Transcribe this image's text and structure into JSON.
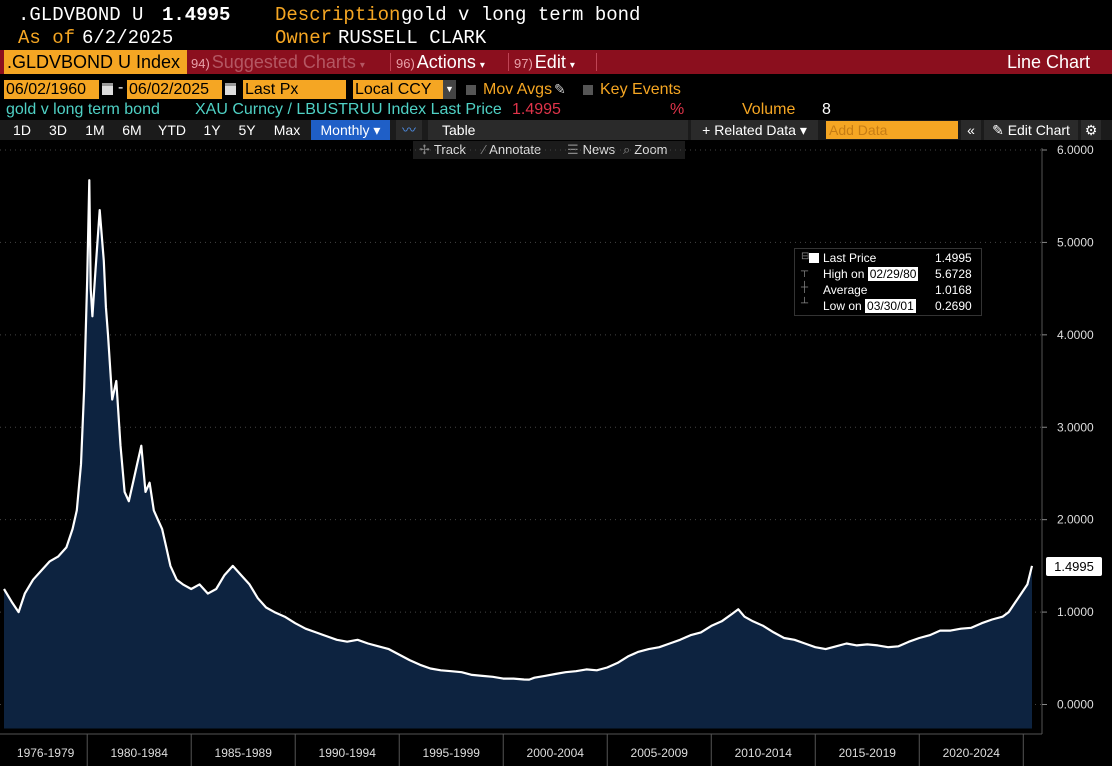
{
  "header": {
    "ticker": ".GLDVBOND U",
    "price": "1.4995",
    "as_of_label": "As of",
    "as_of_value": "6/2/2025",
    "description_label": "Description",
    "description_value": "gold v long term bond",
    "owner_label": "Owner",
    "owner_value": "RUSSELL CLARK"
  },
  "menubar": {
    "index_label": ".GLDVBOND U Index",
    "suggested_num": "94)",
    "suggested_label": "Suggested Charts",
    "actions_num": "96)",
    "actions_label": "Actions",
    "edit_num": "97)",
    "edit_label": "Edit",
    "view_title": "Line Chart"
  },
  "controls": {
    "start_date": "06/02/1960",
    "end_date": "06/02/2025",
    "field": "Last Px",
    "currency": "Local CCY",
    "mov_avgs": "Mov Avgs",
    "key_events": "Key Events"
  },
  "legend_row": {
    "series_name": "gold v long term bond",
    "formula": "XAU Curncy / LBUSTRUU Index Last Price",
    "last_value": "1.4995",
    "pct": "%",
    "volume_label": "Volume",
    "volume_value": "8"
  },
  "toolbar": {
    "ranges": [
      "1D",
      "3D",
      "1M",
      "6M",
      "YTD",
      "1Y",
      "5Y",
      "Max"
    ],
    "frequency": "Monthly",
    "table": "Table",
    "related_data": "Related Data",
    "add_data_placeholder": "Add Data",
    "edit_chart": "Edit Chart"
  },
  "subtoolbar": {
    "track": "Track",
    "annotate": "Annotate",
    "news": "News",
    "zoom": "Zoom"
  },
  "infobox": {
    "last_price_label": "Last Price",
    "last_price_value": "1.4995",
    "high_label": "High on",
    "high_date": "02/29/80",
    "high_value": "5.6728",
    "average_label": "Average",
    "average_value": "1.0168",
    "low_label": "Low on",
    "low_date": "03/30/01",
    "low_value": "0.2690"
  },
  "last_badge": "1.4995",
  "colors": {
    "background": "#000000",
    "line": "#ffffff",
    "fill": "#0d2340",
    "accent_orange": "#f5a623",
    "menubar_red": "#8b0f1e",
    "legend_cyan": "#4fd1c5"
  },
  "chart_data": {
    "type": "area",
    "title": "",
    "xlabel": "",
    "ylabel": "",
    "ylim": [
      0,
      6
    ],
    "y_ticks": [
      "0.0000",
      "1.0000",
      "2.0000",
      "3.0000",
      "4.0000",
      "5.0000",
      "6.0000"
    ],
    "x_ticks": [
      "1976-1979",
      "1980-1984",
      "1985-1989",
      "1990-1994",
      "1995-1999",
      "2000-2004",
      "2005-2009",
      "2010-2014",
      "2015-2019",
      "2020-2024"
    ],
    "xlim": [
      1976.0,
      2025.9
    ],
    "grid": "horizontal-dotted",
    "series": [
      {
        "name": "gold v long term bond",
        "x": [
          1976.0,
          1976.4,
          1976.7,
          1977.0,
          1977.4,
          1977.8,
          1978.2,
          1978.6,
          1979.0,
          1979.3,
          1979.5,
          1979.7,
          1979.85,
          1980.0,
          1980.1,
          1980.17,
          1980.25,
          1980.4,
          1980.6,
          1980.8,
          1980.9,
          1981.0,
          1981.2,
          1981.4,
          1981.6,
          1981.8,
          1982.0,
          1982.2,
          1982.4,
          1982.6,
          1982.8,
          1983.0,
          1983.2,
          1983.4,
          1983.6,
          1983.8,
          1984.0,
          1984.3,
          1984.6,
          1985.0,
          1985.4,
          1985.8,
          1986.2,
          1986.6,
          1987.0,
          1987.4,
          1987.8,
          1988.2,
          1988.6,
          1989.0,
          1989.5,
          1990.0,
          1990.5,
          1991.0,
          1991.5,
          1992.0,
          1992.5,
          1993.0,
          1993.5,
          1994.0,
          1994.5,
          1995.0,
          1995.5,
          1996.0,
          1996.5,
          1997.0,
          1997.5,
          1998.0,
          1998.5,
          1999.0,
          1999.5,
          2000.0,
          2000.5,
          2001.0,
          2001.25,
          2001.5,
          2002.0,
          2002.5,
          2003.0,
          2003.5,
          2004.0,
          2004.5,
          2005.0,
          2005.5,
          2006.0,
          2006.5,
          2007.0,
          2007.5,
          2008.0,
          2008.5,
          2009.0,
          2009.5,
          2010.0,
          2010.5,
          2011.0,
          2011.3,
          2011.6,
          2012.0,
          2012.5,
          2013.0,
          2013.5,
          2014.0,
          2014.5,
          2015.0,
          2015.5,
          2016.0,
          2016.5,
          2017.0,
          2017.5,
          2018.0,
          2018.5,
          2019.0,
          2019.5,
          2020.0,
          2020.5,
          2021.0,
          2021.5,
          2022.0,
          2022.5,
          2023.0,
          2023.5,
          2024.0,
          2024.3,
          2024.6,
          2024.9,
          2025.2,
          2025.42
        ],
        "values": [
          1.25,
          1.1,
          1.0,
          1.2,
          1.35,
          1.45,
          1.55,
          1.6,
          1.7,
          1.9,
          2.1,
          2.6,
          3.4,
          4.6,
          5.6728,
          4.5,
          4.2,
          4.7,
          5.35,
          4.8,
          4.3,
          4.0,
          3.3,
          3.5,
          2.8,
          2.3,
          2.2,
          2.4,
          2.6,
          2.8,
          2.3,
          2.4,
          2.1,
          2.0,
          1.9,
          1.7,
          1.5,
          1.35,
          1.3,
          1.25,
          1.3,
          1.2,
          1.25,
          1.4,
          1.5,
          1.4,
          1.3,
          1.15,
          1.05,
          1.0,
          0.95,
          0.88,
          0.82,
          0.78,
          0.74,
          0.7,
          0.68,
          0.7,
          0.66,
          0.63,
          0.6,
          0.54,
          0.48,
          0.43,
          0.39,
          0.37,
          0.36,
          0.35,
          0.32,
          0.31,
          0.3,
          0.28,
          0.28,
          0.27,
          0.269,
          0.29,
          0.31,
          0.33,
          0.35,
          0.36,
          0.38,
          0.37,
          0.4,
          0.45,
          0.52,
          0.57,
          0.6,
          0.62,
          0.66,
          0.7,
          0.75,
          0.78,
          0.85,
          0.9,
          0.98,
          1.03,
          0.95,
          0.9,
          0.85,
          0.78,
          0.72,
          0.7,
          0.66,
          0.62,
          0.6,
          0.63,
          0.66,
          0.64,
          0.65,
          0.64,
          0.62,
          0.63,
          0.68,
          0.72,
          0.75,
          0.8,
          0.8,
          0.82,
          0.83,
          0.88,
          0.92,
          0.95,
          1.0,
          1.1,
          1.2,
          1.3,
          1.4995
        ]
      }
    ]
  }
}
